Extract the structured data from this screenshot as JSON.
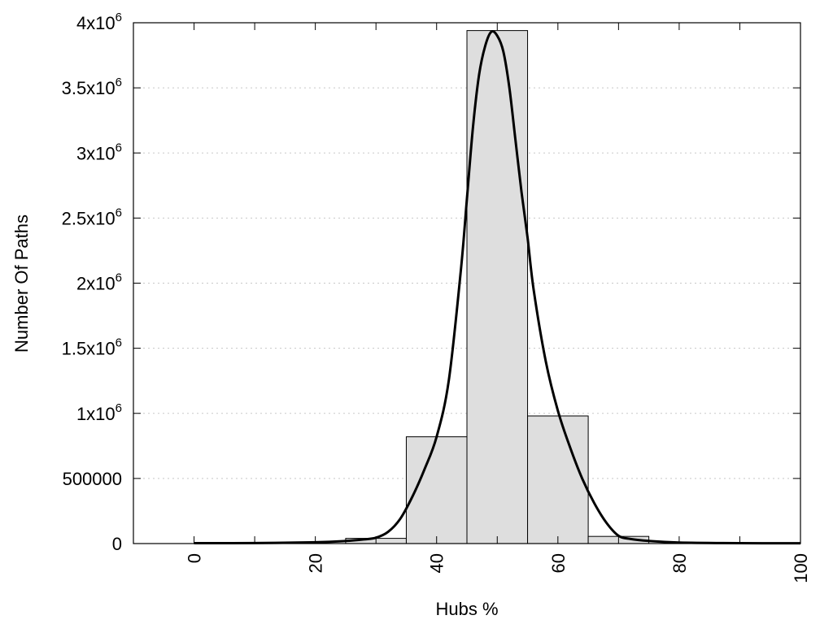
{
  "chart_data": {
    "type": "bar",
    "xlabel": "Hubs %",
    "ylabel": "Number Of Paths",
    "xlim": [
      -10,
      100
    ],
    "ylim": [
      0,
      4000000
    ],
    "x_ticks": [
      0,
      20,
      40,
      60,
      80,
      100
    ],
    "y_ticks": [
      {
        "value": 0,
        "mantissa": "0",
        "exp": ""
      },
      {
        "value": 500000,
        "mantissa": "500000",
        "exp": ""
      },
      {
        "value": 1000000,
        "mantissa": "1x10",
        "exp": "6"
      },
      {
        "value": 1500000,
        "mantissa": "1.5x10",
        "exp": "6"
      },
      {
        "value": 2000000,
        "mantissa": "2x10",
        "exp": "6"
      },
      {
        "value": 2500000,
        "mantissa": "2.5x10",
        "exp": "6"
      },
      {
        "value": 3000000,
        "mantissa": "3x10",
        "exp": "6"
      },
      {
        "value": 3500000,
        "mantissa": "3.5x10",
        "exp": "6"
      },
      {
        "value": 4000000,
        "mantissa": "4x10",
        "exp": "6"
      }
    ],
    "grid": "horizontal-dotted",
    "bars": [
      {
        "x0": 25,
        "x1": 35,
        "value": 40000
      },
      {
        "x0": 35,
        "x1": 45,
        "value": 820000
      },
      {
        "x0": 45,
        "x1": 55,
        "value": 3940000
      },
      {
        "x0": 55,
        "x1": 65,
        "value": 980000
      },
      {
        "x0": 65,
        "x1": 75,
        "value": 55000
      }
    ],
    "fit_curve": {
      "x": [
        0,
        10,
        20,
        25,
        28,
        30,
        32,
        34,
        36,
        38,
        40,
        42,
        44,
        45,
        46,
        47,
        48,
        49,
        50,
        51,
        52,
        53,
        54,
        55,
        56,
        58,
        60,
        62,
        64,
        66,
        68,
        70,
        72,
        75,
        80,
        90,
        100
      ],
      "y": [
        3000,
        4000,
        10000,
        20000,
        32000,
        45000,
        90000,
        190000,
        360000,
        570000,
        820000,
        1250000,
        2100000,
        2650000,
        3200000,
        3600000,
        3820000,
        3930000,
        3900000,
        3780000,
        3500000,
        3100000,
        2700000,
        2350000,
        1950000,
        1400000,
        1020000,
        740000,
        500000,
        310000,
        160000,
        60000,
        35000,
        20000,
        8000,
        3000,
        2000
      ]
    }
  }
}
